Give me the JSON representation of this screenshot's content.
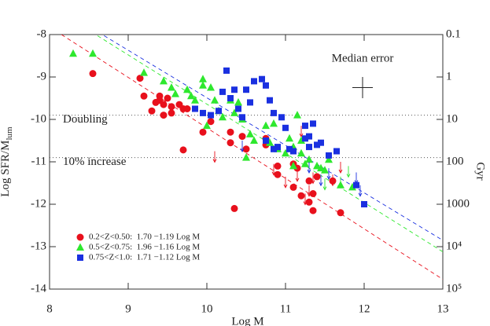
{
  "chart_data": {
    "type": "scatter",
    "xlabel": "Log M",
    "ylabel": "Log SFR/M",
    "ylabel_sub": "lum",
    "y2label": "Gyr",
    "xlim": [
      8,
      13
    ],
    "xticks": [
      8,
      9,
      10,
      11,
      12,
      13
    ],
    "ylim": [
      -14,
      -8
    ],
    "yticks": [
      -14,
      -13,
      -12,
      -11,
      -10,
      -9,
      -8
    ],
    "y2lim": [
      100000,
      0.1
    ],
    "y2_log": true,
    "y2ticks": [
      0.1,
      1,
      10,
      100,
      1000,
      {
        "value": 10000,
        "label": "10⁴"
      },
      {
        "value": 100000,
        "label": "10⁵"
      }
    ],
    "reference_lines": [
      {
        "y": -9.9,
        "label": "Doubling"
      },
      {
        "y": -10.9,
        "label": "10% increase"
      }
    ],
    "median_error": {
      "text": "Median error",
      "x": 11.98,
      "y": -9.25,
      "xerr": 0.13,
      "yerr": 0.25
    },
    "series": [
      {
        "name": "0.2<Z<0.50:  1.70 −1.19 Log M",
        "color": "#e8101c",
        "marker": "circle",
        "fit": {
          "intercept": 1.7,
          "slope": -1.19
        },
        "x": [
          8.55,
          9.15,
          9.2,
          9.3,
          9.35,
          9.4,
          9.4,
          9.45,
          9.45,
          9.5,
          9.55,
          9.55,
          9.65,
          9.7,
          9.75,
          9.7,
          9.95,
          10.05,
          10.3,
          10.3,
          10.45,
          10.5,
          10.75,
          10.75,
          11.1,
          11.15,
          10.9,
          11.4,
          11.3,
          11.1,
          11.2,
          11.35,
          11.3,
          11.35,
          11.7,
          11.6,
          10.35,
          10.9
        ],
        "values": [
          -8.92,
          -9.03,
          -9.45,
          -9.8,
          -9.6,
          -9.45,
          -9.55,
          -9.65,
          -9.9,
          -9.5,
          -9.7,
          -9.85,
          -9.65,
          -9.75,
          -9.75,
          -10.72,
          -10.3,
          -10.05,
          -10.3,
          -10.55,
          -10.4,
          -10.7,
          -10.6,
          -10.45,
          -11.05,
          -11.15,
          -11.3,
          -11.35,
          -11.45,
          -11.6,
          -11.8,
          -11.75,
          -11.95,
          -12.15,
          -12.2,
          -11.45,
          -12.1,
          -11.1
        ],
        "upper_limits": {
          "x": [
            10.1,
            11.2,
            10.85,
            11.15,
            11.0,
            11.3,
            11.35,
            11.7,
            11.6,
            11.25
          ],
          "values": [
            -10.75,
            -10.15,
            -11.05,
            -11.2,
            -11.35,
            -11.55,
            -11.25,
            -11.0,
            -11.3,
            -11.75
          ]
        }
      },
      {
        "name": "0.5<Z<0.75:  1.96 −1.16 Log M",
        "color": "#2ee82e",
        "marker": "triangle",
        "fit": {
          "intercept": 1.96,
          "slope": -1.16
        },
        "x": [
          8.3,
          8.55,
          9.2,
          9.45,
          9.55,
          9.6,
          9.75,
          9.8,
          9.85,
          9.95,
          9.95,
          10.05,
          10.1,
          10.15,
          10.2,
          10.3,
          10.35,
          10.4,
          10.45,
          10.55,
          10.6,
          10.75,
          10.8,
          10.85,
          10.9,
          11.0,
          11.05,
          11.1,
          11.2,
          11.2,
          11.25,
          11.3,
          11.4,
          11.5,
          11.55,
          11.7,
          11.85,
          10.5,
          11.15,
          10.0,
          11.45,
          11.1
        ],
        "values": [
          -8.45,
          -8.45,
          -8.9,
          -9.1,
          -9.25,
          -9.4,
          -9.3,
          -9.45,
          -9.55,
          -9.05,
          -9.2,
          -9.25,
          -9.55,
          -9.8,
          -9.95,
          -9.55,
          -9.85,
          -9.6,
          -10.0,
          -10.35,
          -10.5,
          -10.15,
          -10.55,
          -10.1,
          -10.7,
          -10.8,
          -10.45,
          -10.65,
          -10.5,
          -10.8,
          -11.05,
          -10.95,
          -11.1,
          -11.2,
          -10.95,
          -11.55,
          -11.6,
          -10.9,
          -9.9,
          -10.15,
          -11.15,
          -11.1
        ],
        "upper_limits": {
          "x": [
            11.5,
            11.7,
            11.8
          ],
          "values": [
            -11.4,
            -11.35,
            -11.1
          ]
        }
      },
      {
        "name": "0.75<Z<1.0:  1.71 −1.12 Log M",
        "color": "#1a30e0",
        "marker": "square",
        "fit": {
          "intercept": 1.71,
          "slope": -1.12
        },
        "x": [
          9.85,
          9.95,
          10.05,
          10.15,
          10.3,
          10.5,
          10.6,
          10.7,
          10.75,
          10.55,
          10.4,
          10.45,
          10.2,
          10.25,
          10.35,
          10.8,
          10.95,
          10.85,
          11.0,
          11.25,
          11.25,
          11.35,
          11.3,
          11.1,
          11.05,
          10.85,
          10.75,
          10.9,
          11.4,
          11.45,
          11.55,
          11.65,
          11.3,
          12.0,
          11.9
        ],
        "values": [
          -9.75,
          -9.85,
          -9.9,
          -9.8,
          -9.5,
          -9.3,
          -9.1,
          -9.05,
          -9.2,
          -9.6,
          -9.75,
          -9.95,
          -9.35,
          -8.85,
          -9.3,
          -9.55,
          -9.95,
          -9.85,
          -10.2,
          -10.45,
          -10.15,
          -10.1,
          -10.4,
          -10.75,
          -10.7,
          -10.7,
          -10.5,
          -10.65,
          -10.6,
          -10.55,
          -10.85,
          -10.75,
          -10.65,
          -12.0,
          -11.55
        ],
        "upper_limits": {
          "x": [
            10.45,
            11.3,
            11.55,
            11.45,
            11.95,
            11.9
          ],
          "values": [
            -10.5,
            -11.0,
            -11.15,
            -11.3,
            -11.55,
            -11.25
          ]
        }
      }
    ]
  }
}
